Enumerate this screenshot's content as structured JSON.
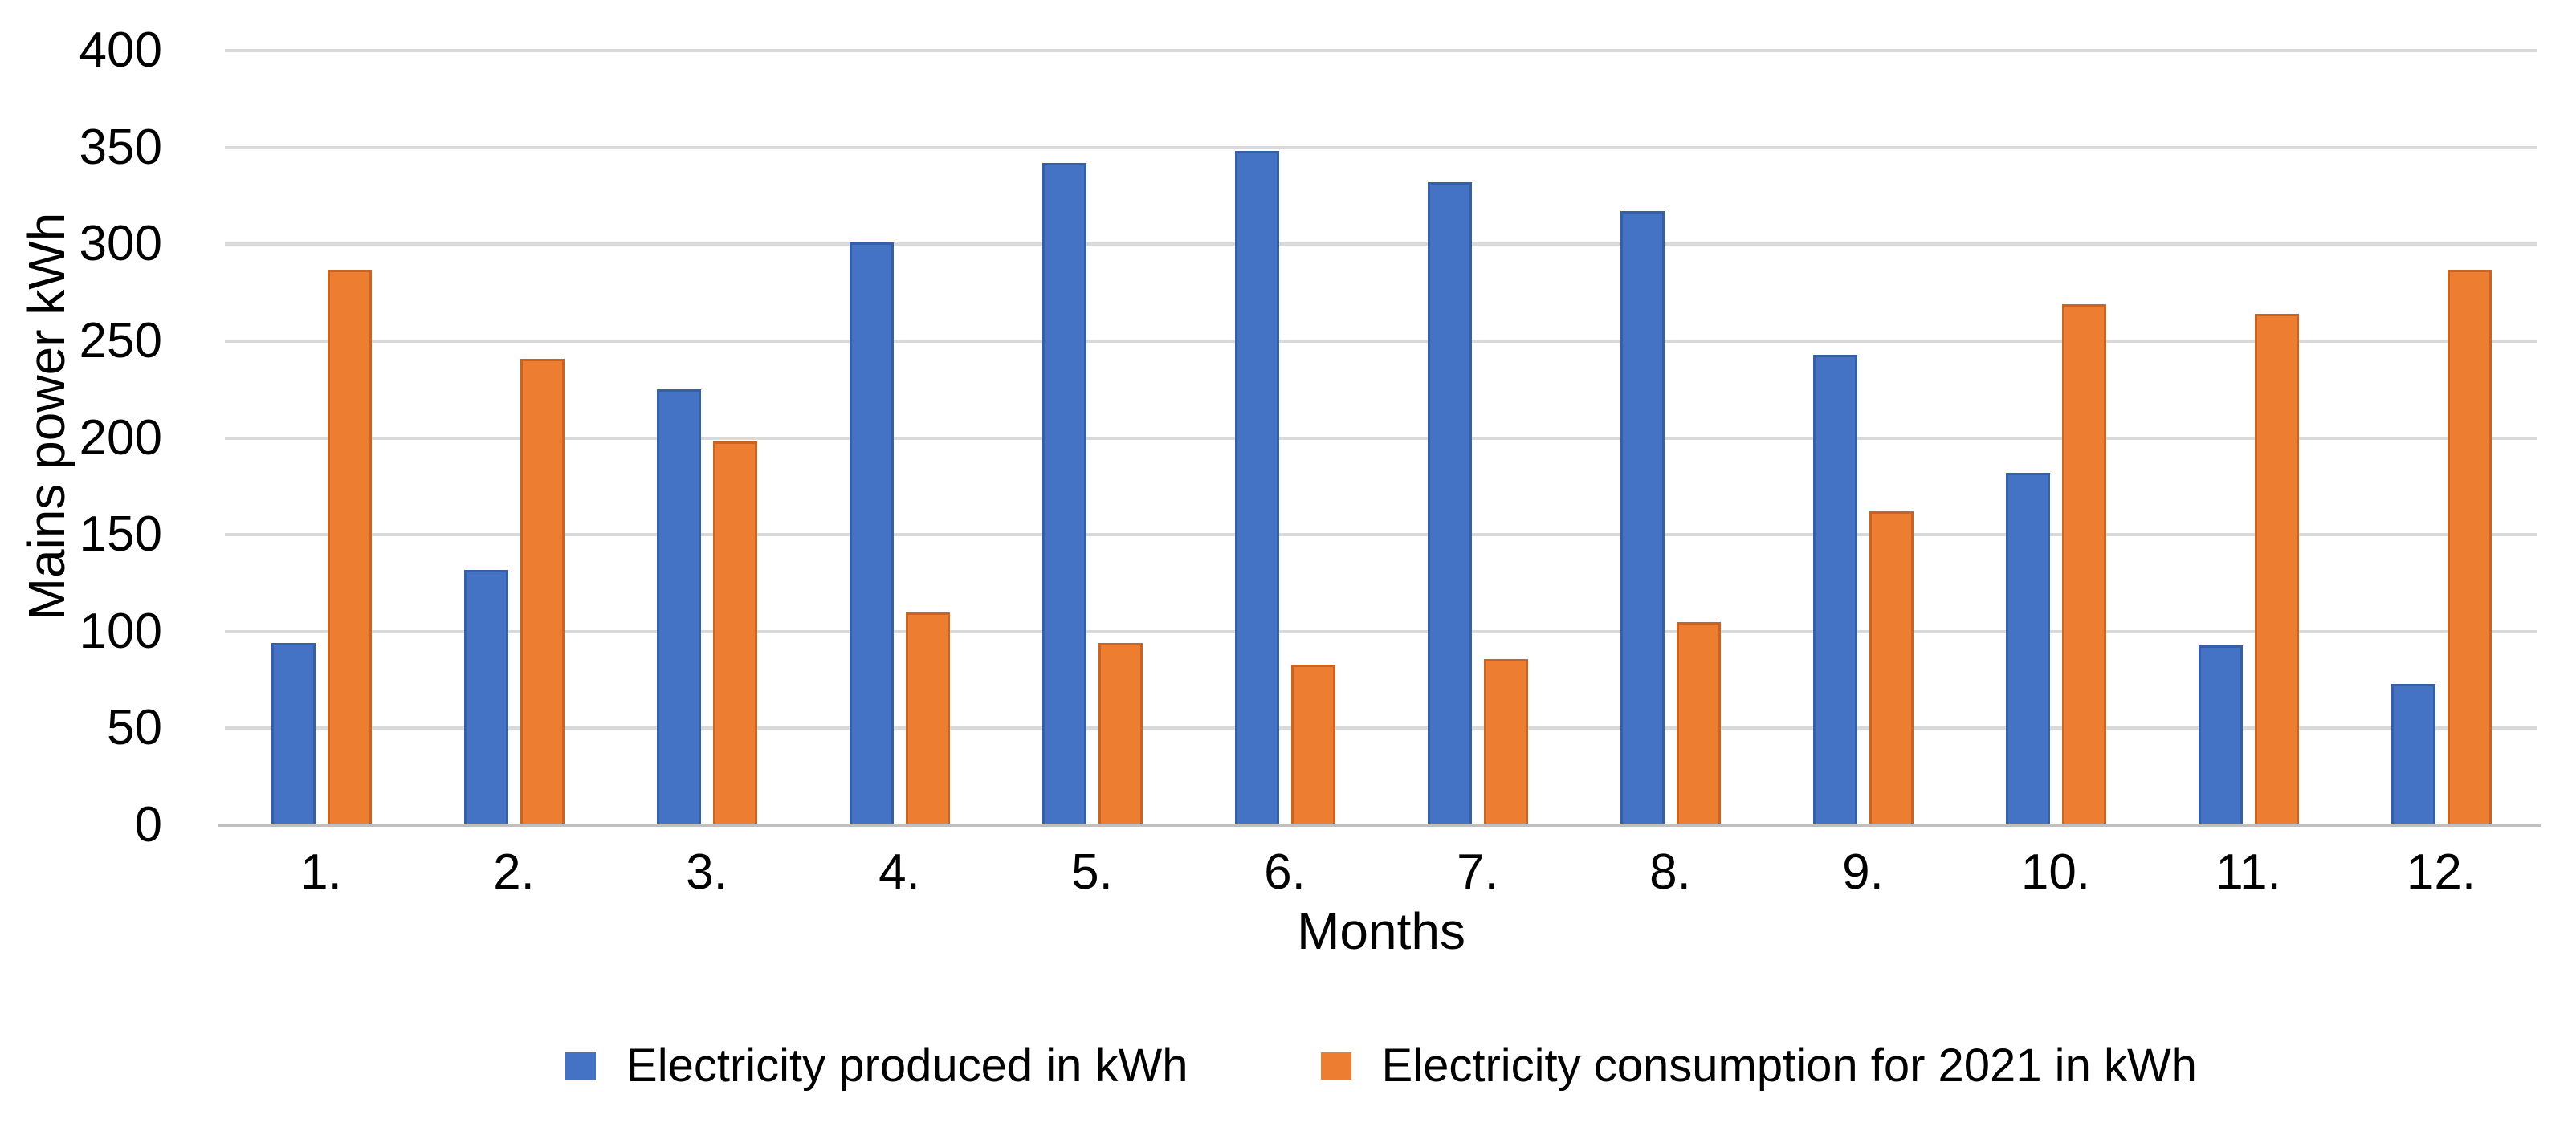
{
  "chart_data": {
    "type": "bar",
    "title": "",
    "xlabel": "Months",
    "ylabel": "Mains power kWh",
    "ylim": [
      0,
      400
    ],
    "ytick_step": 50,
    "yticks": [
      0,
      50,
      100,
      150,
      200,
      250,
      300,
      350,
      400
    ],
    "grid": true,
    "legend_position": "bottom",
    "categories": [
      "1.",
      "2.",
      "3.",
      "4.",
      "5.",
      "6.",
      "7.",
      "8.",
      "9.",
      "10.",
      "11.",
      "12."
    ],
    "series": [
      {
        "name": "Electricity produced in kWh",
        "color": "#4472c4",
        "border_color": "#3560a7",
        "values": [
          94,
          132,
          225,
          301,
          342,
          348,
          332,
          317,
          243,
          182,
          93,
          73
        ]
      },
      {
        "name": "Electricity consumption for 2021 in kWh",
        "color": "#ed7d31",
        "border_color": "#c96422",
        "values": [
          287,
          241,
          198,
          110,
          94,
          83,
          86,
          105,
          162,
          269,
          264,
          287
        ]
      }
    ]
  },
  "colors": {
    "gridline": "#d9d9d9",
    "axis_line": "#bfbfbf",
    "text": "#000000"
  }
}
